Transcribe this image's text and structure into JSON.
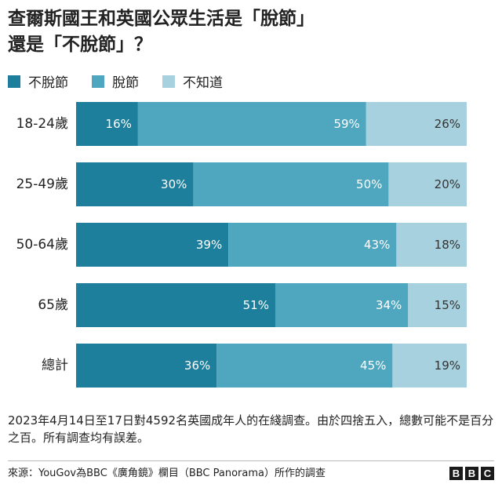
{
  "title_line1": "查爾斯國王和英國公眾生活是「脫節」",
  "title_line2": "還是「不脫節」？",
  "colors": {
    "not_out_of_touch": "#1d7f9c",
    "out_of_touch": "#4ea6bf",
    "dont_know": "#a7d1df"
  },
  "chart_data": {
    "type": "bar",
    "orientation": "horizontal",
    "stacked": true,
    "categories": [
      "18-24歲",
      "25-49歲",
      "50-64歲",
      "65歲",
      "總計"
    ],
    "series": [
      {
        "name": "不脫節",
        "values": [
          16,
          30,
          39,
          51,
          36
        ]
      },
      {
        "name": "脫節",
        "values": [
          59,
          50,
          43,
          34,
          45
        ]
      },
      {
        "name": "不知道",
        "values": [
          26,
          20,
          18,
          15,
          19
        ]
      }
    ],
    "value_suffix": "%",
    "legend_position": "top-left"
  },
  "note": "2023年4月14日至17日對4592名英國成年人的在綫調查。由於四捨五入，總數可能不是百分之百。所有調查均有誤差。",
  "source": "來源：YouGov為BBC《廣角鏡》欄目（BBC Panorama）所作的調查",
  "logo": [
    "B",
    "B",
    "C"
  ]
}
